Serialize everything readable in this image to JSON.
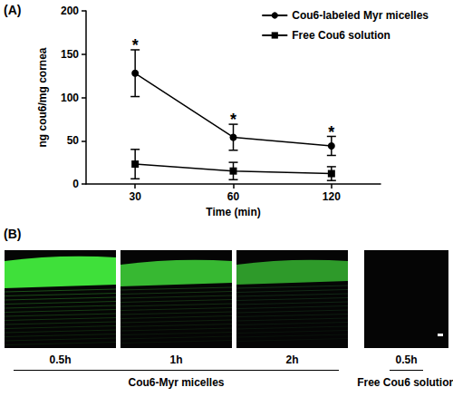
{
  "chart_data": {
    "type": "line",
    "title": "(A)",
    "x_label": "Time (min)",
    "y_label": "ng cou6/mg cornea",
    "categories": [
      "30",
      "60",
      "120"
    ],
    "series": [
      {
        "name": "Cou6-labeled Myr micelles",
        "color": "#000000",
        "marker": "circle",
        "values": [
          128,
          54,
          44
        ],
        "errors": [
          27,
          15,
          11
        ]
      },
      {
        "name": "Free Cou6 solution",
        "color": "#000000",
        "marker": "square",
        "values": [
          23,
          15,
          12
        ],
        "errors": [
          17,
          10,
          8
        ]
      }
    ],
    "annotations": [
      {
        "text": "*",
        "x": "30",
        "y": 160
      },
      {
        "text": "*",
        "x": "60",
        "y": 74
      },
      {
        "text": "*",
        "x": "120",
        "y": 60
      }
    ],
    "ylim": [
      0,
      200
    ],
    "yticks": [
      0,
      50,
      100,
      150,
      200
    ],
    "grid": false,
    "legend": "top-right"
  },
  "panel_b": {
    "label": "(B)",
    "groups": [
      {
        "label": "Cou6-Myr micelles",
        "captions": [
          "0.5h",
          "1h",
          "2h"
        ]
      },
      {
        "label": "Free Cou6 solution",
        "captions": [
          "0.5h"
        ]
      }
    ]
  }
}
